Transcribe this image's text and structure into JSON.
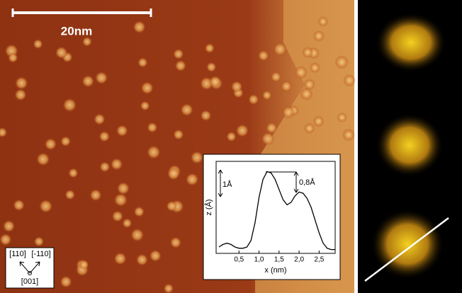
{
  "image": {
    "scale_bar": "20nm",
    "directions": [
      "[110]",
      "[-110]",
      "[001]"
    ]
  },
  "chart_data": {
    "type": "line",
    "x_label": "x (nm)",
    "y_label": "z (Å)",
    "annotations": [
      "1Å",
      "0,8Å"
    ],
    "x": [
      0,
      0.1,
      0.2,
      0.3,
      0.4,
      0.5,
      0.6,
      0.7,
      0.8,
      0.9,
      1.0,
      1.1,
      1.2,
      1.3,
      1.4,
      1.5,
      1.6,
      1.7,
      1.8,
      1.9,
      2.0,
      2.1,
      2.2,
      2.3,
      2.4,
      2.5,
      2.6,
      2.7,
      2.8,
      2.9
    ],
    "values": [
      0.25,
      0.35,
      0.4,
      0.35,
      0.25,
      0.2,
      0.2,
      0.25,
      0.5,
      1.2,
      2.2,
      2.9,
      3.2,
      3.15,
      2.9,
      2.5,
      2.1,
      1.9,
      2.0,
      2.25,
      2.4,
      2.35,
      2.15,
      1.8,
      1.3,
      0.8,
      0.4,
      0.2,
      0.15,
      0.15
    ],
    "color": "#000000",
    "xlim": [
      0,
      2.9
    ],
    "ylim": [
      0,
      3.6
    ],
    "xticks": [
      {
        "value": 0.5,
        "label": "0,5"
      },
      {
        "value": 1.0,
        "label": "1,0"
      },
      {
        "value": 1.5,
        "label": "1,5"
      },
      {
        "value": 2.0,
        "label": "2,0"
      },
      {
        "value": 2.5,
        "label": "2,5"
      }
    ]
  }
}
